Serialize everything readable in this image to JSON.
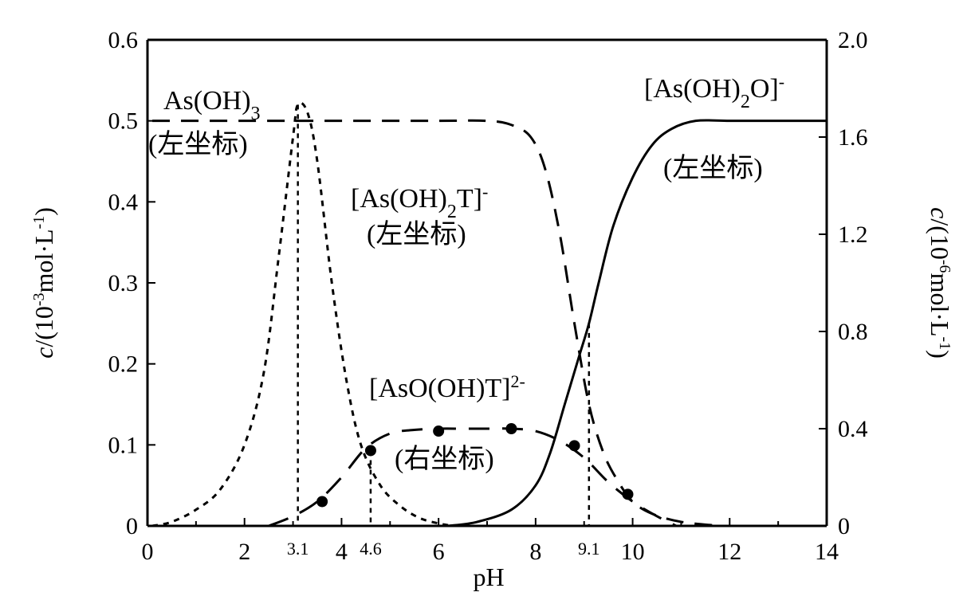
{
  "chart_data": {
    "type": "line",
    "xlabel": "pH",
    "ylabel_left": {
      "prefix": "c",
      "text": "/(10",
      "exp": "-3",
      "unit": "mol·L",
      "unit_exp": "-1",
      "close": ")"
    },
    "ylabel_right": {
      "prefix": "c",
      "text": "/(10",
      "exp": "-6",
      "unit": "mol·L",
      "unit_exp": "-1",
      "close": ")"
    },
    "xlim": [
      0,
      14
    ],
    "ylim_left": [
      0,
      0.6
    ],
    "ylim_right": [
      0,
      2.0
    ],
    "x_ticks": [
      "0",
      "2",
      "4",
      "6",
      "8",
      "10",
      "12",
      "14"
    ],
    "y_left_ticks": [
      "0",
      "0.1",
      "0.2",
      "0.3",
      "0.4",
      "0.5",
      "0.6"
    ],
    "y_right_ticks": [
      "0",
      "0.4",
      "0.8",
      "1.2",
      "1.6",
      "2.0"
    ],
    "marked_x": [
      "3.1",
      "4.6",
      "9.1"
    ],
    "grid": false,
    "series": [
      {
        "name": "As(OH)3",
        "axis": "left",
        "style": "dotted",
        "x": [
          0.1,
          0.5,
          1.0,
          1.5,
          2.0,
          2.4,
          2.7,
          3.0,
          3.1,
          3.3,
          3.5,
          3.8,
          4.1,
          4.4,
          4.8,
          5.2,
          5.6,
          6.0,
          6.3
        ],
        "values": [
          0.0,
          0.005,
          0.02,
          0.045,
          0.1,
          0.19,
          0.33,
          0.48,
          0.52,
          0.51,
          0.45,
          0.3,
          0.18,
          0.1,
          0.05,
          0.025,
          0.01,
          0.003,
          0.0
        ]
      },
      {
        "name": "[As(OH)2T]-",
        "axis": "left",
        "style": "dashed",
        "x": [
          0.1,
          1.0,
          2.0,
          3.0,
          4.0,
          5.0,
          6.0,
          7.0,
          7.5,
          7.9,
          8.2,
          8.5,
          8.8,
          9.1,
          9.4,
          9.7,
          10.0,
          10.4,
          11.0,
          11.8
        ],
        "values": [
          0.5,
          0.5,
          0.5,
          0.5,
          0.5,
          0.5,
          0.5,
          0.5,
          0.495,
          0.48,
          0.44,
          0.36,
          0.25,
          0.15,
          0.09,
          0.055,
          0.03,
          0.015,
          0.005,
          0.0
        ]
      },
      {
        "name": "[As(OH)2O]-",
        "axis": "left",
        "style": "solid",
        "x": [
          6.2,
          6.8,
          7.5,
          8.0,
          8.3,
          8.6,
          8.9,
          9.1,
          9.3,
          9.6,
          10.0,
          10.4,
          10.8,
          11.3,
          12.0,
          13.0,
          14.0
        ],
        "values": [
          0.0,
          0.005,
          0.02,
          0.05,
          0.09,
          0.15,
          0.21,
          0.25,
          0.3,
          0.37,
          0.43,
          0.47,
          0.49,
          0.5,
          0.5,
          0.5,
          0.5
        ]
      },
      {
        "name": "[AsO(OH)T]2-",
        "axis": "right",
        "style": "long-dash",
        "x": [
          2.5,
          3.0,
          3.5,
          4.0,
          4.5,
          5.0,
          5.5,
          6.0,
          6.5,
          7.0,
          7.5,
          8.0,
          8.5,
          9.0,
          9.5,
          10.0,
          10.5,
          10.9
        ],
        "values": [
          0.0,
          0.04,
          0.1,
          0.2,
          0.32,
          0.38,
          0.395,
          0.4,
          0.4,
          0.4,
          0.4,
          0.39,
          0.35,
          0.28,
          0.18,
          0.1,
          0.04,
          0.0
        ]
      }
    ],
    "points": {
      "axis": "right",
      "x": [
        3.6,
        4.6,
        6.0,
        7.5,
        8.8,
        9.9
      ],
      "values": [
        0.1,
        0.31,
        0.39,
        0.4,
        0.33,
        0.13
      ]
    },
    "annotations": {
      "as_oh3": {
        "main": "As(OH)",
        "sub": "3",
        "note": "(左坐标)"
      },
      "as_oh2t": {
        "main": "[As(OH)",
        "sub": "2",
        "tail": "T]",
        "sup": "-",
        "note": "(左坐标)"
      },
      "as_oh2o": {
        "main": "[As(OH)",
        "sub": "2",
        "tail": "O]",
        "sup": "-",
        "note": "(左坐标)"
      },
      "aso_oht": {
        "main": "[AsO(OH)T]",
        "sup": "2-",
        "note": "(右坐标)"
      }
    }
  }
}
